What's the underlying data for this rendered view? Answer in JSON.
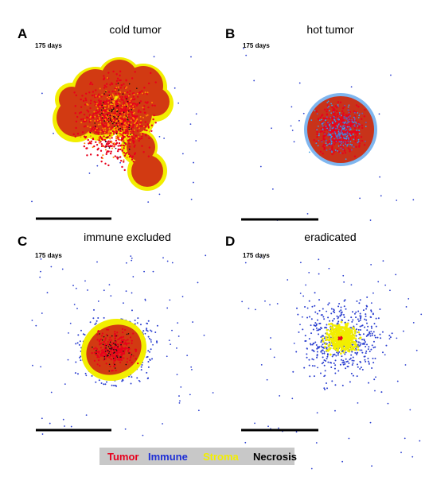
{
  "panels": [
    {
      "letter": "A",
      "title": "cold tumor",
      "time": "175 days"
    },
    {
      "letter": "B",
      "title": "hot tumor",
      "time": "175 days"
    },
    {
      "letter": "C",
      "title": "immune excluded",
      "time": "175 days"
    },
    {
      "letter": "D",
      "title": "eradicated",
      "time": "175 days"
    }
  ],
  "legend": [
    {
      "label": "Tumor",
      "color": "#e8001c"
    },
    {
      "label": "Immune",
      "color": "#1d2fd6"
    },
    {
      "label": "Stroma",
      "color": "#f2ee00"
    },
    {
      "label": "Necrosis",
      "color": "#000000"
    }
  ]
}
